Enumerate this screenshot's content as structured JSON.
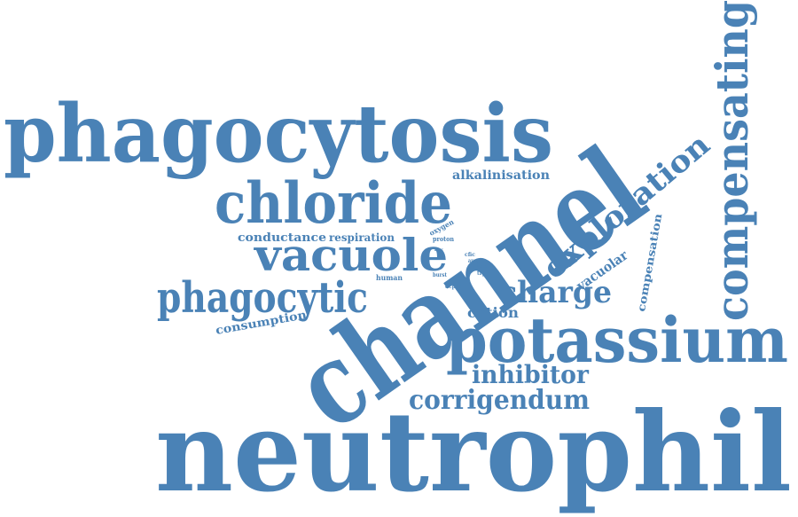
{
  "accent_color": "#4a82b6",
  "words": [
    {
      "text": "neutrophil"
    },
    {
      "text": "channel"
    },
    {
      "text": "phagocytosis"
    },
    {
      "text": "potassium"
    },
    {
      "text": "chloride"
    },
    {
      "text": "compensating"
    },
    {
      "text": "vacuole"
    },
    {
      "text": "phagocytic"
    },
    {
      "text": "exploration"
    },
    {
      "text": "charge"
    },
    {
      "text": "corrigendum"
    },
    {
      "text": "inhibitor"
    },
    {
      "text": "alkalinisation"
    },
    {
      "text": "conductance"
    },
    {
      "text": "respiration"
    },
    {
      "text": "consumption"
    },
    {
      "text": "vacuolar"
    },
    {
      "text": "compensation"
    },
    {
      "text": "cation"
    },
    {
      "text": "oxygen"
    },
    {
      "text": "proton"
    },
    {
      "text": "human"
    },
    {
      "text": "burst"
    },
    {
      "text": "dcpib"
    },
    {
      "text": "cfic"
    },
    {
      "text": "area"
    },
    {
      "text": "kcnq"
    },
    {
      "text": "trpm"
    },
    {
      "text": "zinc"
    }
  ]
}
